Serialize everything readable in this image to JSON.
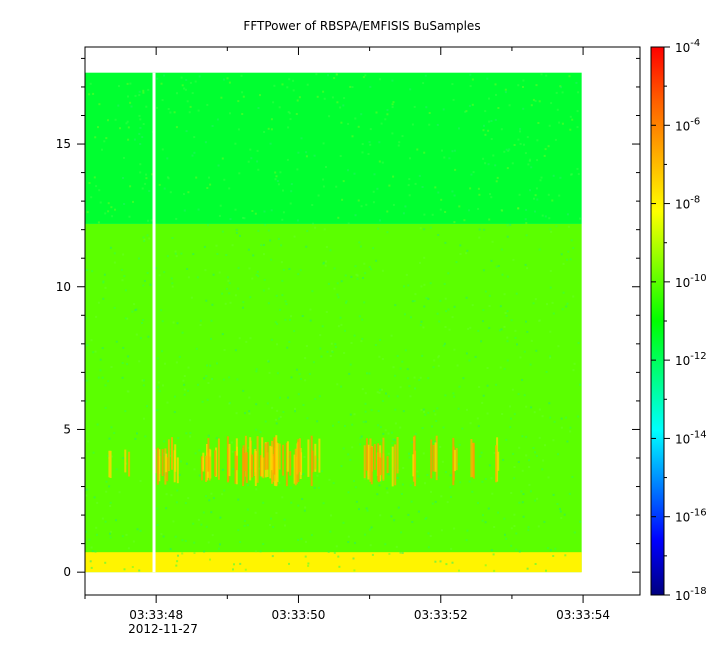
{
  "chart_data": {
    "type": "heatmap",
    "title": "FFTPower of RBSPA/EMFISIS  BuSamples",
    "xlabel": "",
    "ylabel": "",
    "x_ticks": [
      {
        "label": "03:33:48",
        "sublabel": "2012-11-27"
      },
      {
        "label": "03:33:50",
        "sublabel": ""
      },
      {
        "label": "03:33:52",
        "sublabel": ""
      },
      {
        "label": "03:33:54",
        "sublabel": ""
      }
    ],
    "xlim_seconds_after_03_33_47": [
      0.0,
      7.8
    ],
    "data_x_range_seconds_after_03_33_47": [
      0.0,
      6.98
    ],
    "ylim": [
      -0.8,
      18.4
    ],
    "y_ticks": [
      0,
      5,
      10,
      15
    ],
    "y_tick_labels": [
      "0",
      "5",
      "10",
      "15"
    ],
    "colorbar": {
      "scale": "log",
      "range": [
        1e-18,
        0.0001
      ],
      "tick_labels": [
        {
          "base": "10",
          "exp": "-4"
        },
        {
          "base": "10",
          "exp": "-6"
        },
        {
          "base": "10",
          "exp": "-8"
        },
        {
          "base": "10",
          "exp": "-10"
        },
        {
          "base": "10",
          "exp": "-12"
        },
        {
          "base": "10",
          "exp": "-14"
        },
        {
          "base": "10",
          "exp": "-16"
        },
        {
          "base": "10",
          "exp": "-18"
        }
      ],
      "colors": [
        "#00007f",
        "#0000ff",
        "#0080ff",
        "#00ffff",
        "#00ff80",
        "#00ff00",
        "#80ff00",
        "#ffff00",
        "#ffb000",
        "#ff6000",
        "#ff0000"
      ]
    },
    "regions": [
      {
        "name": "background-low-band",
        "y_range": [
          0,
          12.2
        ],
        "power": 1e-10
      },
      {
        "name": "background-high-band",
        "y_range": [
          12.2,
          17.5
        ],
        "power": 3e-12
      },
      {
        "name": "bottom-bright-band",
        "y_range": [
          0,
          0.7
        ],
        "power": 1e-08
      },
      {
        "name": "wave-burst-band",
        "y_range": [
          3.0,
          4.8
        ],
        "power": 1e-07
      }
    ],
    "data_gap_seconds_after_03_33_47": 0.97
  }
}
